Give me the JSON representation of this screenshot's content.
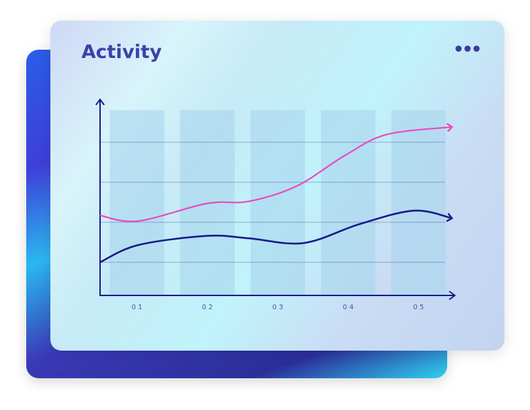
{
  "card": {
    "title": "Activity",
    "menu_icon": "more-horizontal-icon"
  },
  "chart_data": {
    "type": "line",
    "title": "Activity",
    "categories": [
      "01",
      "02",
      "03",
      "04",
      "05"
    ],
    "xlim": [
      0.48,
      5.5
    ],
    "ylim": [
      0.2,
      5
    ],
    "grid": true,
    "gridlines_y": [
      1,
      2,
      3,
      4
    ],
    "series": [
      {
        "color": "#e84ac0",
        "points": [
          [
            0.48,
            2.17
          ],
          [
            1.02,
            2.03
          ],
          [
            2.0,
            2.47
          ],
          [
            2.59,
            2.52
          ],
          [
            3.27,
            2.9
          ],
          [
            3.96,
            3.67
          ],
          [
            4.55,
            4.19
          ],
          [
            5.48,
            4.38
          ]
        ]
      },
      {
        "color": "#1a1a8c",
        "points": [
          [
            0.48,
            1.0
          ],
          [
            1.02,
            1.43
          ],
          [
            2.0,
            1.66
          ],
          [
            2.59,
            1.6
          ],
          [
            3.37,
            1.48
          ],
          [
            4.16,
            1.95
          ],
          [
            4.94,
            2.29
          ],
          [
            5.48,
            2.1
          ]
        ]
      }
    ],
    "colors": {
      "axis": "#1a1a8c",
      "bar": "#a8d6ec"
    }
  }
}
